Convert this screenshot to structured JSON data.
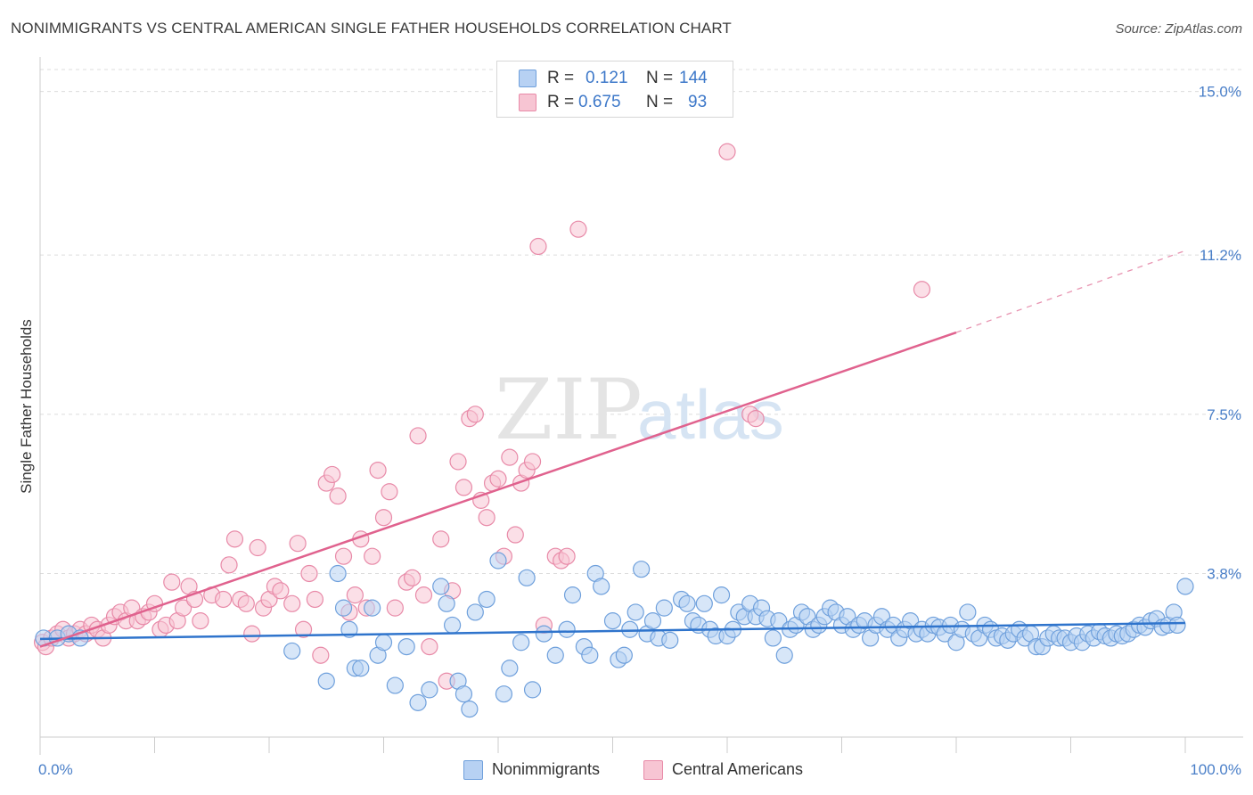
{
  "header": {
    "title": "NONIMMIGRANTS VS CENTRAL AMERICAN SINGLE FATHER HOUSEHOLDS CORRELATION CHART",
    "source": "Source: ZipAtlas.com"
  },
  "watermark": {
    "zip": "ZIP",
    "atlas": "atlas"
  },
  "legend": {
    "rows": [
      {
        "r_label": "R =",
        "r_value": "0.121",
        "n_label": "N =",
        "n_value": "144",
        "color": "#b7d1f3",
        "border": "#6fa0dc"
      },
      {
        "r_label": "R =",
        "r_value": "0.675",
        "n_label": "N =",
        "n_value": "93",
        "color": "#f7c5d3",
        "border": "#e88aa8"
      }
    ]
  },
  "bottom_legend": [
    {
      "label": "Nonimmigrants",
      "color": "#b7d1f3",
      "border": "#6fa0dc"
    },
    {
      "label": "Central Americans",
      "color": "#f7c5d3",
      "border": "#e88aa8"
    }
  ],
  "chart_data": {
    "type": "scatter",
    "title": "NONIMMIGRANTS VS CENTRAL AMERICAN SINGLE FATHER HOUSEHOLDS CORRELATION CHART",
    "xlabel": "",
    "ylabel": "Single Father Households",
    "x_tick_labels": [
      "0.0%",
      "100.0%"
    ],
    "y_tick_labels": [
      "15.0%",
      "11.2%",
      "7.5%",
      "3.8%"
    ],
    "y_tick_values": [
      15.0,
      11.2,
      7.5,
      3.8
    ],
    "xlim": [
      0,
      100
    ],
    "ylim": [
      0,
      15.8
    ],
    "grid": true,
    "legend_position": "top-center",
    "series": [
      {
        "name": "Nonimmigrants",
        "color": "#6fa0dc",
        "fill": "#b7d1f3",
        "trend": {
          "x": [
            0,
            100
          ],
          "y": [
            2.28,
            2.65
          ]
        },
        "points": [
          [
            0.3,
            2.3
          ],
          [
            1.5,
            2.3
          ],
          [
            2.5,
            2.4
          ],
          [
            3.5,
            2.3
          ],
          [
            22,
            2.0
          ],
          [
            25,
            1.3
          ],
          [
            26,
            3.8
          ],
          [
            26.5,
            3.0
          ],
          [
            27,
            2.5
          ],
          [
            27.5,
            1.6
          ],
          [
            28,
            1.6
          ],
          [
            29,
            3.0
          ],
          [
            29.5,
            1.9
          ],
          [
            30,
            2.2
          ],
          [
            31,
            1.2
          ],
          [
            32,
            2.1
          ],
          [
            33,
            0.8
          ],
          [
            34,
            1.1
          ],
          [
            35,
            3.5
          ],
          [
            35.5,
            3.1
          ],
          [
            36,
            2.6
          ],
          [
            36.5,
            1.3
          ],
          [
            37,
            1.0
          ],
          [
            37.5,
            0.65
          ],
          [
            38,
            2.9
          ],
          [
            39,
            3.2
          ],
          [
            40,
            4.1
          ],
          [
            40.5,
            1.0
          ],
          [
            41,
            1.6
          ],
          [
            42,
            2.2
          ],
          [
            42.5,
            3.7
          ],
          [
            43,
            1.1
          ],
          [
            44,
            2.4
          ],
          [
            45,
            1.9
          ],
          [
            46,
            2.5
          ],
          [
            46.5,
            3.3
          ],
          [
            47.5,
            2.1
          ],
          [
            48,
            1.9
          ],
          [
            48.5,
            3.8
          ],
          [
            49,
            3.5
          ],
          [
            50,
            2.7
          ],
          [
            50.5,
            1.8
          ],
          [
            51,
            1.9
          ],
          [
            51.5,
            2.5
          ],
          [
            52,
            2.9
          ],
          [
            52.5,
            3.9
          ],
          [
            53,
            2.4
          ],
          [
            53.5,
            2.7
          ],
          [
            54,
            2.3
          ],
          [
            54.5,
            3.0
          ],
          [
            55,
            2.25
          ],
          [
            56,
            3.2
          ],
          [
            56.5,
            3.1
          ],
          [
            57,
            2.7
          ],
          [
            57.5,
            2.6
          ],
          [
            58,
            3.1
          ],
          [
            58.5,
            2.5
          ],
          [
            59,
            2.35
          ],
          [
            59.5,
            3.3
          ],
          [
            60,
            2.35
          ],
          [
            60.5,
            2.5
          ],
          [
            61,
            2.9
          ],
          [
            61.5,
            2.8
          ],
          [
            62,
            3.1
          ],
          [
            62.5,
            2.8
          ],
          [
            63,
            3.0
          ],
          [
            63.5,
            2.75
          ],
          [
            64,
            2.3
          ],
          [
            64.5,
            2.7
          ],
          [
            65,
            1.9
          ],
          [
            65.5,
            2.5
          ],
          [
            66,
            2.6
          ],
          [
            66.5,
            2.9
          ],
          [
            67,
            2.8
          ],
          [
            67.5,
            2.5
          ],
          [
            68,
            2.6
          ],
          [
            68.5,
            2.8
          ],
          [
            69,
            3.0
          ],
          [
            69.5,
            2.9
          ],
          [
            70,
            2.6
          ],
          [
            70.5,
            2.8
          ],
          [
            71,
            2.5
          ],
          [
            71.5,
            2.6
          ],
          [
            72,
            2.7
          ],
          [
            72.5,
            2.3
          ],
          [
            73,
            2.6
          ],
          [
            73.5,
            2.8
          ],
          [
            74,
            2.5
          ],
          [
            74.5,
            2.6
          ],
          [
            75,
            2.3
          ],
          [
            75.5,
            2.5
          ],
          [
            76,
            2.7
          ],
          [
            76.5,
            2.4
          ],
          [
            77,
            2.5
          ],
          [
            77.5,
            2.4
          ],
          [
            78,
            2.6
          ],
          [
            78.5,
            2.55
          ],
          [
            79,
            2.4
          ],
          [
            79.5,
            2.6
          ],
          [
            80,
            2.2
          ],
          [
            80.5,
            2.5
          ],
          [
            81,
            2.9
          ],
          [
            81.5,
            2.4
          ],
          [
            82,
            2.3
          ],
          [
            82.5,
            2.6
          ],
          [
            83,
            2.5
          ],
          [
            83.5,
            2.3
          ],
          [
            84,
            2.35
          ],
          [
            84.5,
            2.25
          ],
          [
            85,
            2.4
          ],
          [
            85.5,
            2.5
          ],
          [
            86,
            2.3
          ],
          [
            86.5,
            2.4
          ],
          [
            87,
            2.1
          ],
          [
            87.5,
            2.1
          ],
          [
            88,
            2.3
          ],
          [
            88.5,
            2.4
          ],
          [
            89,
            2.3
          ],
          [
            89.5,
            2.3
          ],
          [
            90,
            2.2
          ],
          [
            90.5,
            2.35
          ],
          [
            91,
            2.2
          ],
          [
            91.5,
            2.4
          ],
          [
            92,
            2.3
          ],
          [
            92.5,
            2.45
          ],
          [
            93,
            2.35
          ],
          [
            93.5,
            2.3
          ],
          [
            94,
            2.4
          ],
          [
            94.5,
            2.35
          ],
          [
            95,
            2.4
          ],
          [
            95.5,
            2.5
          ],
          [
            96,
            2.6
          ],
          [
            96.5,
            2.55
          ],
          [
            97,
            2.7
          ],
          [
            97.5,
            2.75
          ],
          [
            98,
            2.55
          ],
          [
            98.5,
            2.6
          ],
          [
            99,
            2.9
          ],
          [
            99.3,
            2.6
          ],
          [
            100,
            3.5
          ]
        ]
      },
      {
        "name": "Central Americans",
        "color": "#e88aa8",
        "fill": "#f7c5d3",
        "trend": {
          "x": [
            0,
            80
          ],
          "y": [
            2.1,
            9.4
          ]
        },
        "trend_extension": {
          "x": [
            80,
            100
          ],
          "y": [
            9.4,
            11.3
          ]
        },
        "points": [
          [
            0.2,
            2.2
          ],
          [
            0.5,
            2.1
          ],
          [
            1,
            2.3
          ],
          [
            1.5,
            2.4
          ],
          [
            2,
            2.5
          ],
          [
            2.5,
            2.3
          ],
          [
            3,
            2.4
          ],
          [
            3.5,
            2.5
          ],
          [
            4,
            2.4
          ],
          [
            4.5,
            2.6
          ],
          [
            5,
            2.5
          ],
          [
            5.5,
            2.3
          ],
          [
            6,
            2.6
          ],
          [
            6.5,
            2.8
          ],
          [
            7,
            2.9
          ],
          [
            7.5,
            2.7
          ],
          [
            8,
            3.0
          ],
          [
            8.5,
            2.7
          ],
          [
            9,
            2.8
          ],
          [
            9.5,
            2.9
          ],
          [
            10,
            3.1
          ],
          [
            10.5,
            2.5
          ],
          [
            11,
            2.6
          ],
          [
            11.5,
            3.6
          ],
          [
            12,
            2.7
          ],
          [
            12.5,
            3.0
          ],
          [
            13,
            3.5
          ],
          [
            13.5,
            3.2
          ],
          [
            14,
            2.7
          ],
          [
            15,
            3.3
          ],
          [
            16,
            3.2
          ],
          [
            16.5,
            4.0
          ],
          [
            17,
            4.6
          ],
          [
            17.5,
            3.2
          ],
          [
            18,
            3.1
          ],
          [
            18.5,
            2.4
          ],
          [
            19,
            4.4
          ],
          [
            19.5,
            3.0
          ],
          [
            20,
            3.2
          ],
          [
            20.5,
            3.5
          ],
          [
            21,
            3.4
          ],
          [
            22,
            3.1
          ],
          [
            22.5,
            4.5
          ],
          [
            23,
            2.5
          ],
          [
            23.5,
            3.8
          ],
          [
            24,
            3.2
          ],
          [
            24.5,
            1.9
          ],
          [
            25,
            5.9
          ],
          [
            25.5,
            6.1
          ],
          [
            26,
            5.6
          ],
          [
            26.5,
            4.2
          ],
          [
            27,
            2.9
          ],
          [
            27.5,
            3.3
          ],
          [
            28,
            4.6
          ],
          [
            28.5,
            3.0
          ],
          [
            29,
            4.2
          ],
          [
            29.5,
            6.2
          ],
          [
            30,
            5.1
          ],
          [
            30.5,
            5.7
          ],
          [
            31,
            3.0
          ],
          [
            32,
            3.6
          ],
          [
            32.5,
            3.7
          ],
          [
            33,
            7.0
          ],
          [
            33.5,
            3.3
          ],
          [
            34,
            2.1
          ],
          [
            35,
            4.6
          ],
          [
            35.5,
            1.3
          ],
          [
            36,
            3.4
          ],
          [
            36.5,
            6.4
          ],
          [
            37,
            5.8
          ],
          [
            37.5,
            7.4
          ],
          [
            38,
            7.5
          ],
          [
            38.5,
            5.5
          ],
          [
            39,
            5.1
          ],
          [
            39.5,
            5.9
          ],
          [
            40,
            6.0
          ],
          [
            40.5,
            4.2
          ],
          [
            41,
            6.5
          ],
          [
            41.5,
            4.7
          ],
          [
            42,
            5.9
          ],
          [
            42.5,
            6.2
          ],
          [
            43,
            6.4
          ],
          [
            43.5,
            11.4
          ],
          [
            44,
            2.6
          ],
          [
            45,
            4.2
          ],
          [
            45.5,
            4.1
          ],
          [
            46,
            4.2
          ],
          [
            47,
            11.8
          ],
          [
            60,
            13.6
          ],
          [
            62,
            7.5
          ],
          [
            62.5,
            7.4
          ],
          [
            77,
            10.4
          ]
        ]
      }
    ]
  }
}
